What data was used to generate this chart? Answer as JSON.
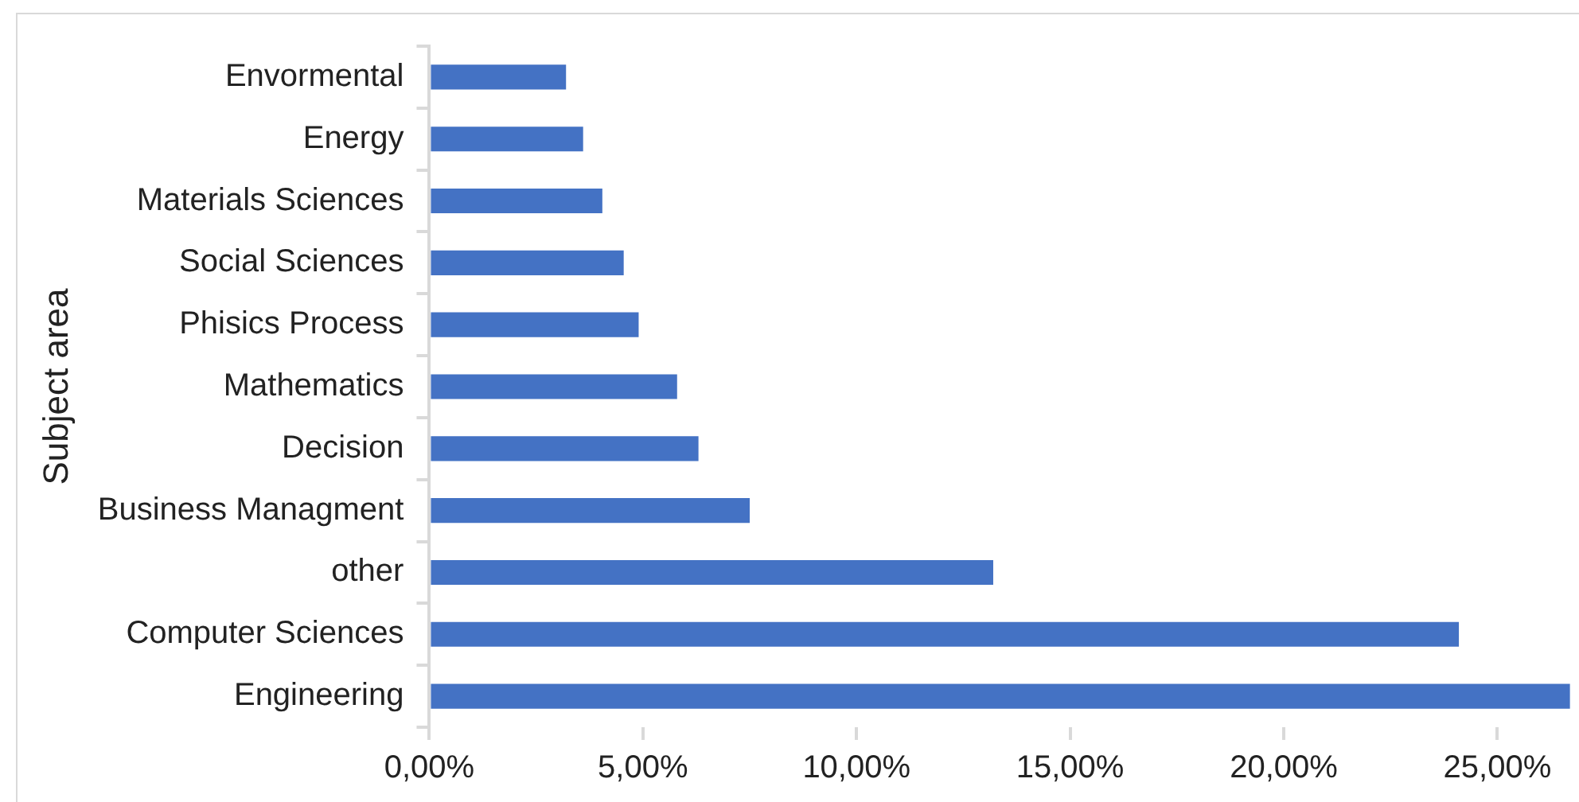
{
  "chart_data": {
    "type": "bar",
    "orientation": "horizontal",
    "ylabel": "Subject area",
    "categories": [
      "Envormental",
      "Energy",
      "Materials Sciences",
      "Social Sciences",
      "Phisics Process",
      "Mathematics",
      "Decision",
      "Business Managment",
      "other",
      "Computer Sciences",
      "Engineering"
    ],
    "values": [
      3.2,
      3.6,
      4.05,
      4.55,
      4.9,
      5.8,
      6.3,
      7.5,
      13.2,
      24.1,
      26.7
    ],
    "color": "#4472c4",
    "xlim": [
      0,
      26.8
    ],
    "xticks": [
      {
        "value": 0,
        "label": "0,00%"
      },
      {
        "value": 5,
        "label": "5,00%"
      },
      {
        "value": 10,
        "label": "10,00%"
      },
      {
        "value": 15,
        "label": "15,00%"
      },
      {
        "value": 20,
        "label": "20,00%"
      },
      {
        "value": 25,
        "label": "25,00%"
      }
    ],
    "grid": false,
    "legend": false
  }
}
